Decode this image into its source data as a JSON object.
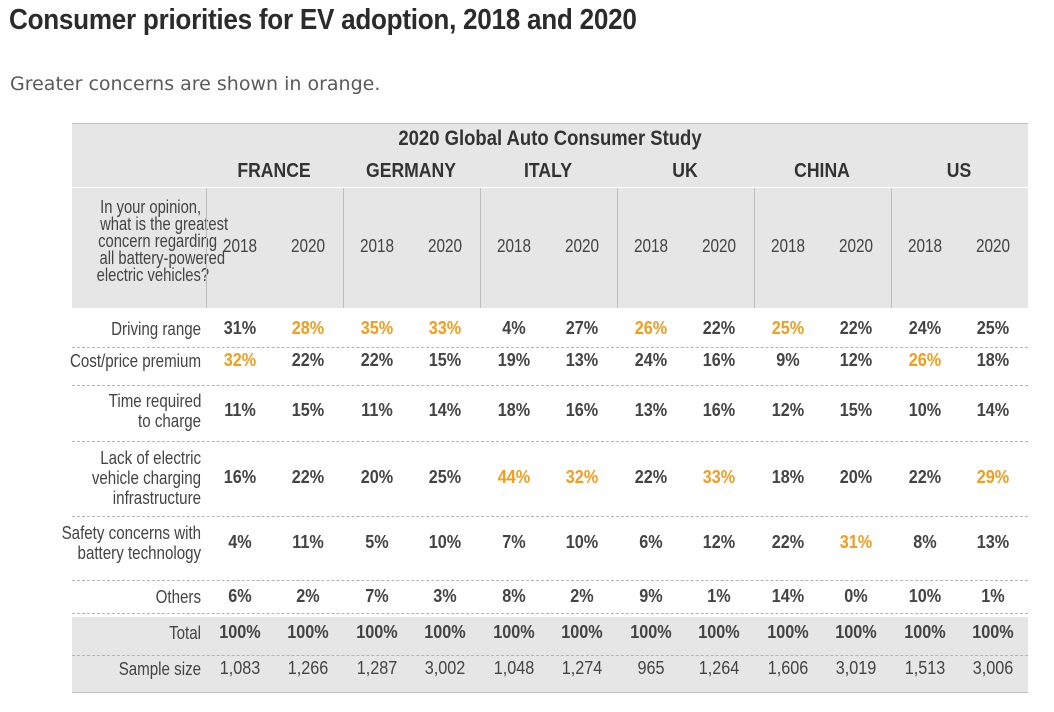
{
  "title": "Consumer priorities for EV adoption, 2018 and 2020",
  "subtitle": "Greater concerns are shown in orange.",
  "chart_data": {
    "type": "table",
    "study": "2020 Global Auto Consumer Study",
    "question": [
      "In your opinion,",
      "what is the greatest",
      "concern regarding",
      "all battery-powered",
      "electric vehicles?"
    ],
    "years": [
      "2018",
      "2020"
    ],
    "countries": [
      "FRANCE",
      "GERMANY",
      "ITALY",
      "UK",
      "CHINA",
      "US"
    ],
    "highlight_color": "#f39c1e",
    "rows": [
      {
        "label": [
          "Driving range"
        ],
        "values": [
          "31%",
          "28%",
          "35%",
          "33%",
          "4%",
          "27%",
          "26%",
          "22%",
          "25%",
          "22%",
          "24%",
          "25%"
        ],
        "highlight": [
          false,
          true,
          true,
          true,
          false,
          false,
          true,
          false,
          true,
          false,
          false,
          false
        ]
      },
      {
        "label": [
          "Cost/price premium"
        ],
        "values": [
          "32%",
          "22%",
          "22%",
          "15%",
          "19%",
          "13%",
          "24%",
          "16%",
          "9%",
          "12%",
          "26%",
          "18%"
        ],
        "highlight": [
          true,
          false,
          false,
          false,
          false,
          false,
          false,
          false,
          false,
          false,
          true,
          false
        ]
      },
      {
        "label": [
          "Time required",
          "to charge"
        ],
        "values": [
          "11%",
          "15%",
          "11%",
          "14%",
          "18%",
          "16%",
          "13%",
          "16%",
          "12%",
          "15%",
          "10%",
          "14%"
        ],
        "highlight": [
          false,
          false,
          false,
          false,
          false,
          false,
          false,
          false,
          false,
          false,
          false,
          false
        ]
      },
      {
        "label": [
          "Lack of electric",
          "vehicle charging",
          "infrastructure"
        ],
        "values": [
          "16%",
          "22%",
          "20%",
          "25%",
          "44%",
          "32%",
          "22%",
          "33%",
          "18%",
          "20%",
          "22%",
          "29%"
        ],
        "highlight": [
          false,
          false,
          false,
          false,
          true,
          true,
          false,
          true,
          false,
          false,
          false,
          true
        ]
      },
      {
        "label": [
          "Safety concerns with",
          "battery technology"
        ],
        "values": [
          "4%",
          "11%",
          "5%",
          "10%",
          "7%",
          "10%",
          "6%",
          "12%",
          "22%",
          "31%",
          "8%",
          "13%"
        ],
        "highlight": [
          false,
          false,
          false,
          false,
          false,
          false,
          false,
          false,
          false,
          true,
          false,
          false
        ]
      },
      {
        "label": [
          "Others"
        ],
        "values": [
          "6%",
          "2%",
          "7%",
          "3%",
          "8%",
          "2%",
          "9%",
          "1%",
          "14%",
          "0%",
          "10%",
          "1%"
        ],
        "highlight": [
          false,
          false,
          false,
          false,
          false,
          false,
          false,
          false,
          false,
          false,
          false,
          false
        ]
      },
      {
        "label": [
          "Total"
        ],
        "values": [
          "100%",
          "100%",
          "100%",
          "100%",
          "100%",
          "100%",
          "100%",
          "100%",
          "100%",
          "100%",
          "100%",
          "100%"
        ],
        "highlight": [
          false,
          false,
          false,
          false,
          false,
          false,
          false,
          false,
          false,
          false,
          false,
          false
        ]
      },
      {
        "label": [
          "Sample size"
        ],
        "values": [
          "1,083",
          "1,266",
          "1,287",
          "3,002",
          "1,048",
          "1,274",
          "965",
          "1,264",
          "1,606",
          "3,019",
          "1,513",
          "3,006"
        ],
        "highlight": [
          false,
          false,
          false,
          false,
          false,
          false,
          false,
          false,
          false,
          false,
          false,
          false
        ]
      }
    ]
  }
}
